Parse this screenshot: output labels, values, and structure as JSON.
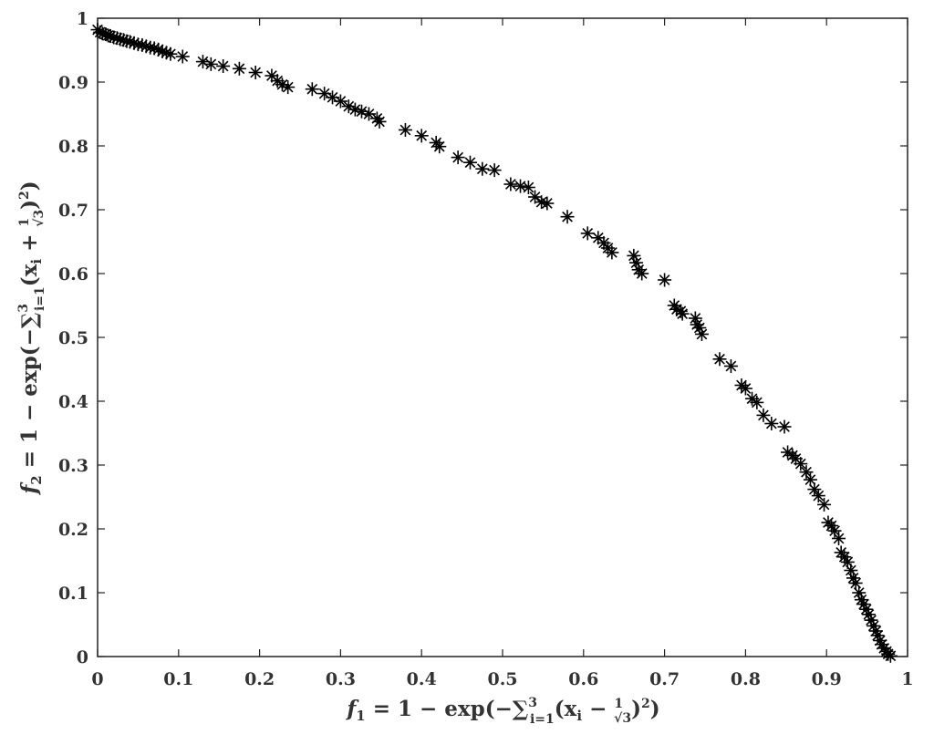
{
  "chart_data": {
    "type": "scatter",
    "xlabel": "f₁ = 1 − exp(−∑ᵢ₌₁³(xᵢ − 1/√3)²)",
    "ylabel": "f₂ = 1 − exp(−∑ᵢ₌₁³(xᵢ + 1/√3)²)",
    "xlabel_parts": {
      "main": "f",
      "sub1": "1",
      "eq": " = 1 − exp(−",
      "sum": "∑",
      "sum_sup": "3",
      "sum_sub": "i=1",
      "paren": "(x",
      "sub_i": "i",
      "minus": " − ",
      "frac_num": "1",
      "frac_den": "√3",
      "close": ")",
      "sq": "2",
      "end": ")"
    },
    "ylabel_parts": {
      "main": "f",
      "sub1": "2",
      "eq": " = 1 − exp(−",
      "sum": "∑",
      "sum_sup": "3",
      "sum_sub": "i=1",
      "paren": "(x",
      "sub_i": "i",
      "plus": " + ",
      "frac_num": "1",
      "frac_den": "√3",
      "close": ")",
      "sq": "2",
      "end": ")"
    },
    "xlim": [
      0,
      1
    ],
    "ylim": [
      0,
      1
    ],
    "xticks": [
      "0",
      "0.1",
      "0.2",
      "0.3",
      "0.4",
      "0.5",
      "0.6",
      "0.7",
      "0.8",
      "0.9",
      "1"
    ],
    "yticks": [
      "0",
      "0.1",
      "0.2",
      "0.3",
      "0.4",
      "0.5",
      "0.6",
      "0.7",
      "0.8",
      "0.9",
      "1"
    ],
    "grid": false,
    "marker": "*",
    "marker_color": "#000000",
    "points": [
      [
        0.0,
        0.982
      ],
      [
        0.003,
        0.978
      ],
      [
        0.006,
        0.976
      ],
      [
        0.01,
        0.975
      ],
      [
        0.013,
        0.973
      ],
      [
        0.016,
        0.972
      ],
      [
        0.02,
        0.97
      ],
      [
        0.024,
        0.969
      ],
      [
        0.028,
        0.967
      ],
      [
        0.032,
        0.966
      ],
      [
        0.036,
        0.964
      ],
      [
        0.04,
        0.963
      ],
      [
        0.045,
        0.961
      ],
      [
        0.05,
        0.959
      ],
      [
        0.055,
        0.958
      ],
      [
        0.06,
        0.956
      ],
      [
        0.065,
        0.954
      ],
      [
        0.07,
        0.953
      ],
      [
        0.075,
        0.951
      ],
      [
        0.08,
        0.948
      ],
      [
        0.085,
        0.946
      ],
      [
        0.09,
        0.944
      ],
      [
        0.105,
        0.94
      ],
      [
        0.13,
        0.932
      ],
      [
        0.14,
        0.928
      ],
      [
        0.155,
        0.925
      ],
      [
        0.175,
        0.921
      ],
      [
        0.195,
        0.915
      ],
      [
        0.215,
        0.91
      ],
      [
        0.222,
        0.902
      ],
      [
        0.228,
        0.896
      ],
      [
        0.235,
        0.892
      ],
      [
        0.265,
        0.889
      ],
      [
        0.28,
        0.882
      ],
      [
        0.29,
        0.876
      ],
      [
        0.3,
        0.87
      ],
      [
        0.31,
        0.862
      ],
      [
        0.318,
        0.857
      ],
      [
        0.326,
        0.854
      ],
      [
        0.335,
        0.85
      ],
      [
        0.345,
        0.843
      ],
      [
        0.348,
        0.838
      ],
      [
        0.38,
        0.825
      ],
      [
        0.4,
        0.816
      ],
      [
        0.418,
        0.805
      ],
      [
        0.422,
        0.799
      ],
      [
        0.445,
        0.782
      ],
      [
        0.46,
        0.774
      ],
      [
        0.475,
        0.764
      ],
      [
        0.49,
        0.762
      ],
      [
        0.51,
        0.74
      ],
      [
        0.522,
        0.737
      ],
      [
        0.532,
        0.735
      ],
      [
        0.54,
        0.72
      ],
      [
        0.548,
        0.712
      ],
      [
        0.555,
        0.71
      ],
      [
        0.58,
        0.689
      ],
      [
        0.605,
        0.663
      ],
      [
        0.618,
        0.656
      ],
      [
        0.625,
        0.648
      ],
      [
        0.63,
        0.64
      ],
      [
        0.635,
        0.633
      ],
      [
        0.662,
        0.628
      ],
      [
        0.665,
        0.617
      ],
      [
        0.668,
        0.606
      ],
      [
        0.672,
        0.6
      ],
      [
        0.7,
        0.59
      ],
      [
        0.712,
        0.55
      ],
      [
        0.715,
        0.544
      ],
      [
        0.72,
        0.541
      ],
      [
        0.722,
        0.537
      ],
      [
        0.738,
        0.53
      ],
      [
        0.74,
        0.52
      ],
      [
        0.743,
        0.515
      ],
      [
        0.746,
        0.505
      ],
      [
        0.768,
        0.466
      ],
      [
        0.782,
        0.455
      ],
      [
        0.795,
        0.425
      ],
      [
        0.8,
        0.42
      ],
      [
        0.808,
        0.404
      ],
      [
        0.814,
        0.398
      ],
      [
        0.822,
        0.378
      ],
      [
        0.832,
        0.365
      ],
      [
        0.848,
        0.36
      ],
      [
        0.852,
        0.32
      ],
      [
        0.858,
        0.315
      ],
      [
        0.862,
        0.31
      ],
      [
        0.868,
        0.302
      ],
      [
        0.875,
        0.289
      ],
      [
        0.88,
        0.277
      ],
      [
        0.885,
        0.262
      ],
      [
        0.89,
        0.252
      ],
      [
        0.897,
        0.238
      ],
      [
        0.902,
        0.21
      ],
      [
        0.906,
        0.205
      ],
      [
        0.91,
        0.197
      ],
      [
        0.915,
        0.185
      ],
      [
        0.918,
        0.163
      ],
      [
        0.922,
        0.156
      ],
      [
        0.926,
        0.148
      ],
      [
        0.93,
        0.135
      ],
      [
        0.933,
        0.123
      ],
      [
        0.936,
        0.115
      ],
      [
        0.94,
        0.1
      ],
      [
        0.943,
        0.089
      ],
      [
        0.946,
        0.082
      ],
      [
        0.949,
        0.074
      ],
      [
        0.952,
        0.066
      ],
      [
        0.955,
        0.057
      ],
      [
        0.958,
        0.048
      ],
      [
        0.961,
        0.04
      ],
      [
        0.963,
        0.033
      ],
      [
        0.966,
        0.025
      ],
      [
        0.968,
        0.019
      ],
      [
        0.971,
        0.013
      ],
      [
        0.974,
        0.008
      ],
      [
        0.976,
        0.004
      ],
      [
        0.979,
        0.001
      ]
    ]
  }
}
